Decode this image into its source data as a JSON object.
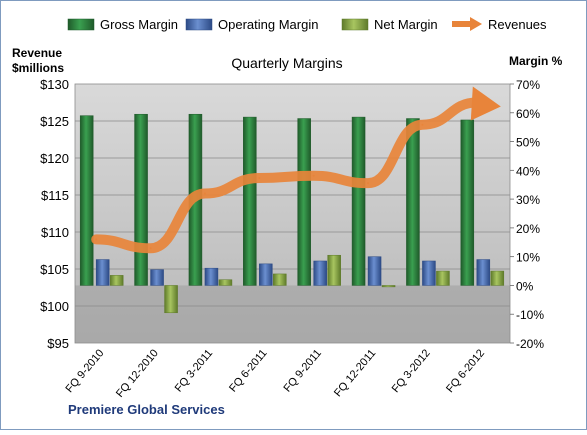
{
  "chart_data": {
    "type": "bar",
    "title": "Quarterly Margins",
    "left_axis_label_line1": "Revenue",
    "left_axis_label_line2": "$millions",
    "right_axis_label": "Margin %",
    "footer": "Premiere Global Services",
    "categories": [
      "FQ 9-2010",
      "FQ 12-2010",
      "FQ 3-2011",
      "FQ 6-2011",
      "FQ 9-2011",
      "FQ 12-2011",
      "FQ 3-2012",
      "FQ 6-2012"
    ],
    "left_axis": {
      "min": 95,
      "max": 130,
      "step": 5,
      "tick_labels": [
        "$95",
        "$100",
        "$105",
        "$110",
        "$115",
        "$120",
        "$125",
        "$130"
      ]
    },
    "right_axis": {
      "min": -20,
      "max": 70,
      "step": 10,
      "tick_labels": [
        "-20%",
        "-10%",
        "0%",
        "10%",
        "20%",
        "30%",
        "40%",
        "50%",
        "60%",
        "70%"
      ]
    },
    "series": [
      {
        "name": "Gross Margin",
        "axis": "right",
        "kind": "bar",
        "color": "#2e7d3a",
        "values": [
          59.0,
          59.5,
          59.5,
          58.5,
          58.0,
          58.5,
          58.0,
          57.5
        ]
      },
      {
        "name": "Operating Margin",
        "axis": "right",
        "kind": "bar",
        "color": "#4a6eb5",
        "values": [
          9.0,
          5.5,
          6.0,
          7.5,
          8.5,
          10.0,
          8.5,
          9.0
        ]
      },
      {
        "name": "Net Margin",
        "axis": "right",
        "kind": "bar",
        "color": "#8aa84a",
        "values": [
          3.5,
          -9.5,
          2.0,
          4.0,
          10.5,
          -0.5,
          5.0,
          5.0
        ]
      },
      {
        "name": "Revenues",
        "axis": "left",
        "kind": "line",
        "color": "#e8843a",
        "values": [
          109.0,
          107.8,
          115.2,
          117.3,
          117.6,
          116.6,
          124.5,
          127.5
        ]
      }
    ],
    "legend_position": "top",
    "grid": true
  }
}
